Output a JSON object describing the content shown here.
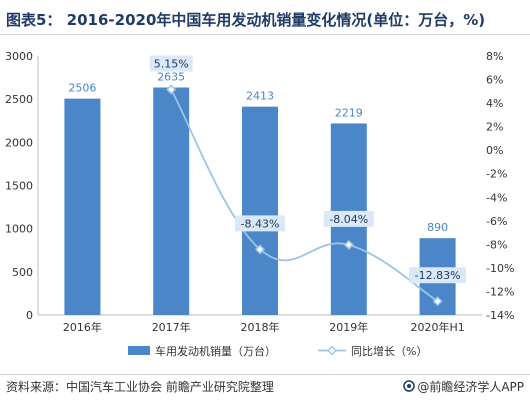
{
  "header": {
    "title": "图表5： 2016-2020年中国车用发动机销量变化情况(单位：万台，%)"
  },
  "footer": {
    "source": "资料来源：中国汽车工业协会 前瞻产业研究院整理",
    "brand": "@前瞻经济学人APP"
  },
  "colors": {
    "bar": "#4a86c8",
    "line": "#9dc3e6",
    "title": "#1f3b66",
    "label_box": "#dbe8f5"
  },
  "chart_data": {
    "type": "bar+line",
    "categories": [
      "2016年",
      "2017年",
      "2018年",
      "2019年",
      "2020年H1"
    ],
    "series": [
      {
        "name": "车用发动机销量（万台）",
        "type": "bar",
        "axis": "left",
        "values": [
          2506,
          2635,
          2413,
          2219,
          890
        ],
        "labels": [
          "2506",
          "2635",
          "2413",
          "2219",
          "890"
        ]
      },
      {
        "name": "同比增长（%）",
        "type": "line",
        "axis": "right",
        "values": [
          null,
          5.15,
          -8.43,
          -8.04,
          -12.83
        ],
        "labels": [
          "",
          "5.15%",
          "-8.43%",
          "-8.04%",
          "-12.83%"
        ]
      }
    ],
    "y_left": {
      "min": 0,
      "max": 3000,
      "ticks": [
        "0",
        "500",
        "1000",
        "1500",
        "2000",
        "2500",
        "3000"
      ]
    },
    "y_right": {
      "min": -14,
      "max": 8,
      "ticks": [
        "-14%",
        "-12%",
        "-10%",
        "-8%",
        "-6%",
        "-4%",
        "-2%",
        "0%",
        "2%",
        "4%",
        "6%",
        "8%"
      ]
    },
    "legend_position": "bottom",
    "grid": false
  }
}
